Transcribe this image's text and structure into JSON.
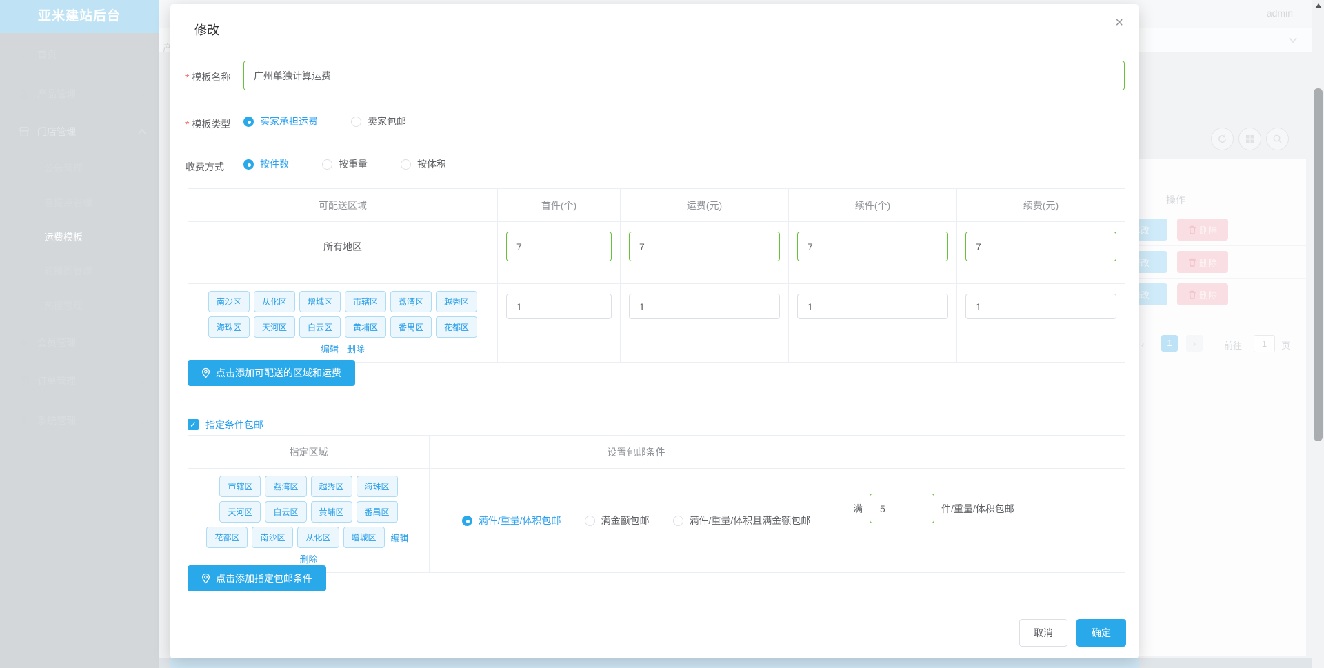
{
  "app": {
    "title": "亚米建站后台",
    "user": "admin",
    "partial_breadcrumb": "产"
  },
  "colors": {
    "primary": "#29a9ea",
    "link_blue": "#2b9fe8",
    "valid_green": "#67c23a",
    "required_red": "#f56c6c",
    "tag_bg": "#ecf7fd"
  },
  "sidebar": {
    "items": [
      {
        "label": "首页",
        "icon": "home-icon"
      },
      {
        "label": "产品管理",
        "icon": "user-icon",
        "expandable": true
      },
      {
        "label": "门店管理",
        "icon": "shop-icon",
        "expandable": true,
        "expanded": true,
        "children": [
          "公告管理",
          "自提点管理",
          "运费模板",
          "轮播图管理",
          "热搜管理"
        ],
        "active_child": "运费模板"
      },
      {
        "label": "会员管理",
        "icon": "badge-icon",
        "expandable": true
      },
      {
        "label": "订单管理",
        "icon": "order-icon",
        "expandable": true
      },
      {
        "label": "系统管理",
        "icon": "gear-icon",
        "expandable": true
      }
    ]
  },
  "modal": {
    "title": "修改",
    "close_icon": "×",
    "fields": {
      "name": {
        "label": "模板名称",
        "required": true,
        "value": "广州单独计算运费"
      },
      "type": {
        "label": "模板类型",
        "required": true,
        "options": [
          "买家承担运费",
          "卖家包邮"
        ],
        "selected": "买家承担运费"
      },
      "charge": {
        "label": "收费方式",
        "options": [
          "按件数",
          "按重量",
          "按体积"
        ],
        "selected": "按件数"
      }
    },
    "region_table": {
      "headers": [
        "可配送区域",
        "首件(个)",
        "运费(元)",
        "续件(个)",
        "续费(元)"
      ],
      "rows": [
        {
          "region": "所有地区",
          "first": "7",
          "fee": "7",
          "next": "7",
          "next_fee": "7"
        },
        {
          "tags": [
            "南沙区",
            "从化区",
            "增城区",
            "市辖区",
            "荔湾区",
            "越秀区",
            "海珠区",
            "天河区",
            "白云区",
            "黄埔区",
            "番禺区",
            "花都区"
          ],
          "first": "1",
          "fee": "1",
          "next": "1",
          "next_fee": "1"
        }
      ],
      "edit_link": "编辑",
      "delete_link": "删除"
    },
    "add_region_button": "点击添加可配送的区域和运费",
    "conditional_free": {
      "label": "指定条件包邮",
      "checked": true
    },
    "condition_table": {
      "headers": [
        "指定区域",
        "设置包邮条件",
        ""
      ],
      "tags": [
        "市辖区",
        "荔湾区",
        "越秀区",
        "海珠区",
        "天河区",
        "白云区",
        "黄埔区",
        "番禺区",
        "花都区",
        "南沙区",
        "从化区",
        "增城区"
      ],
      "edit_link": "编辑",
      "delete_link": "删除",
      "options": [
        "满件/重量/体积包邮",
        "满金额包邮",
        "满件/重量/体积且满金额包邮"
      ],
      "selected": "满件/重量/体积包邮",
      "threshold": {
        "prefix": "满",
        "value": "5",
        "suffix": "件/重量/体积包邮"
      }
    },
    "add_condition_button": "点击添加指定包邮条件",
    "cancel_button": "取消",
    "confirm_button": "确定"
  },
  "background_table": {
    "ops_header": "操作",
    "edit_label": "修改",
    "delete_label": "删除",
    "row_count": 3,
    "pagination": {
      "page": "1",
      "goto_label": "前往",
      "goto_value": "1",
      "unit_label": "页"
    }
  }
}
